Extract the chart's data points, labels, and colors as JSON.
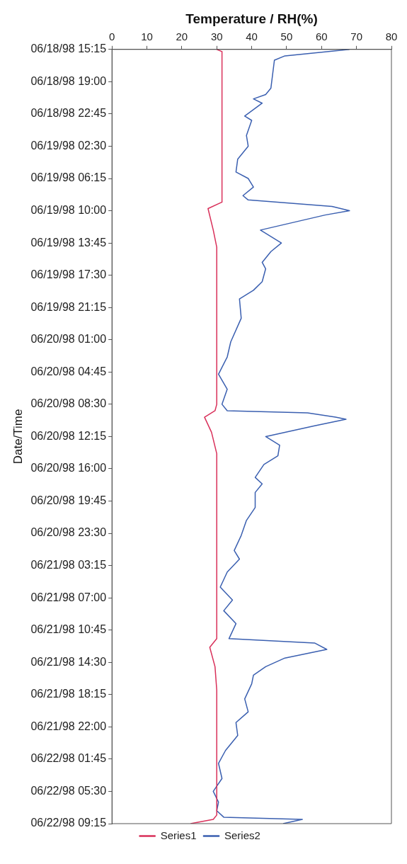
{
  "chart_data": {
    "type": "line",
    "orientation": "horizontal",
    "xlabel": "Temperature / RH(%)",
    "ylabel": "Date/Time",
    "xlim": [
      0,
      80
    ],
    "xticks": [
      0,
      10,
      20,
      30,
      40,
      50,
      60,
      70,
      80
    ],
    "ylim": [
      "1998-06-22T09:15",
      "1998-06-18T15:15"
    ],
    "yticks": [
      {
        "value": "1998-06-18T15:15",
        "label": "06/18/98 15:15"
      },
      {
        "value": "1998-06-18T19:00",
        "label": "06/18/98 19:00"
      },
      {
        "value": "1998-06-18T22:45",
        "label": "06/18/98 22:45"
      },
      {
        "value": "1998-06-19T02:30",
        "label": "06/19/98 02:30"
      },
      {
        "value": "1998-06-19T06:15",
        "label": "06/19/98 06:15"
      },
      {
        "value": "1998-06-19T10:00",
        "label": "06/19/98 10:00"
      },
      {
        "value": "1998-06-19T13:45",
        "label": "06/19/98 13:45"
      },
      {
        "value": "1998-06-19T17:30",
        "label": "06/19/98 17:30"
      },
      {
        "value": "1998-06-19T21:15",
        "label": "06/19/98 21:15"
      },
      {
        "value": "1998-06-20T01:00",
        "label": "06/20/98 01:00"
      },
      {
        "value": "1998-06-20T04:45",
        "label": "06/20/98 04:45"
      },
      {
        "value": "1998-06-20T08:30",
        "label": "06/20/98 08:30"
      },
      {
        "value": "1998-06-20T12:15",
        "label": "06/20/98 12:15"
      },
      {
        "value": "1998-06-20T16:00",
        "label": "06/20/98 16:00"
      },
      {
        "value": "1998-06-20T19:45",
        "label": "06/20/98 19:45"
      },
      {
        "value": "1998-06-20T23:30",
        "label": "06/20/98 23:30"
      },
      {
        "value": "1998-06-21T03:15",
        "label": "06/21/98 03:15"
      },
      {
        "value": "1998-06-21T07:00",
        "label": "06/21/98 07:00"
      },
      {
        "value": "1998-06-21T10:45",
        "label": "06/21/98 10:45"
      },
      {
        "value": "1998-06-21T14:30",
        "label": "06/21/98 14:30"
      },
      {
        "value": "1998-06-21T18:15",
        "label": "06/21/98 18:15"
      },
      {
        "value": "1998-06-21T22:00",
        "label": "06/21/98 22:00"
      },
      {
        "value": "1998-06-22T01:45",
        "label": "06/22/98 01:45"
      },
      {
        "value": "1998-06-22T05:30",
        "label": "06/22/98 05:30"
      },
      {
        "value": "1998-06-22T09:15",
        "label": "06/22/98 09:15"
      }
    ],
    "grid": false,
    "legend": "bottom",
    "marker": "none",
    "line_style": "solid",
    "series": [
      {
        "name": "Series1",
        "color": "#d9305a",
        "x": [
          "1998-06-18T15:15",
          "1998-06-18T15:30",
          "1998-06-19T09:00",
          "1998-06-19T09:45",
          "1998-06-19T12:15",
          "1998-06-19T14:15",
          "1998-06-20T08:30",
          "1998-06-20T09:15",
          "1998-06-20T10:00",
          "1998-06-20T11:45",
          "1998-06-20T14:15",
          "1998-06-21T11:45",
          "1998-06-21T12:45",
          "1998-06-21T15:00",
          "1998-06-21T17:45",
          "1998-06-22T08:15",
          "1998-06-22T08:45",
          "1998-06-22T09:15"
        ],
        "values": [
          30,
          31.5,
          31.5,
          27.5,
          29,
          30,
          30,
          29.5,
          26.5,
          28.5,
          30,
          30,
          28,
          29.5,
          30,
          30,
          29,
          22.5
        ]
      },
      {
        "name": "Series2",
        "color": "#3a5fb0",
        "x": [
          "1998-06-18T15:15",
          "1998-06-18T16:00",
          "1998-06-18T16:30",
          "1998-06-18T19:45",
          "1998-06-18T20:30",
          "1998-06-18T21:00",
          "1998-06-18T21:30",
          "1998-06-18T23:00",
          "1998-06-18T23:30",
          "1998-06-19T01:15",
          "1998-06-19T02:30",
          "1998-06-19T04:00",
          "1998-06-19T05:30",
          "1998-06-19T06:15",
          "1998-06-19T07:15",
          "1998-06-19T08:15",
          "1998-06-19T08:45",
          "1998-06-19T09:30",
          "1998-06-19T10:00",
          "1998-06-19T10:30",
          "1998-06-19T12:15",
          "1998-06-19T13:45",
          "1998-06-19T14:45",
          "1998-06-19T16:00",
          "1998-06-19T16:45",
          "1998-06-19T18:15",
          "1998-06-19T19:15",
          "1998-06-19T20:15",
          "1998-06-19T22:30",
          "1998-06-20T01:15",
          "1998-06-20T03:00",
          "1998-06-20T05:00",
          "1998-06-20T06:45",
          "1998-06-20T08:30",
          "1998-06-20T09:15",
          "1998-06-20T09:30",
          "1998-06-20T10:00",
          "1998-06-20T10:15",
          "1998-06-20T11:00",
          "1998-06-20T12:15",
          "1998-06-20T13:15",
          "1998-06-20T14:30",
          "1998-06-20T15:30",
          "1998-06-20T17:00",
          "1998-06-20T17:45",
          "1998-06-20T18:45",
          "1998-06-20T20:30",
          "1998-06-20T22:00",
          "1998-06-20T23:45",
          "1998-06-21T01:30",
          "1998-06-21T02:30",
          "1998-06-21T04:00",
          "1998-06-21T05:45",
          "1998-06-21T07:15",
          "1998-06-21T08:30",
          "1998-06-21T10:00",
          "1998-06-21T11:45",
          "1998-06-21T12:15",
          "1998-06-21T13:00",
          "1998-06-21T14:00",
          "1998-06-21T15:00",
          "1998-06-21T16:00",
          "1998-06-21T17:00",
          "1998-06-21T18:45",
          "1998-06-21T20:15",
          "1998-06-21T21:30",
          "1998-06-21T23:00",
          "1998-06-22T00:45",
          "1998-06-22T02:15",
          "1998-06-22T04:00",
          "1998-06-22T05:30",
          "1998-06-22T06:45",
          "1998-06-22T07:45",
          "1998-06-22T08:30",
          "1998-06-22T08:45",
          "1998-06-22T09:15"
        ],
        "values": [
          68,
          49.5,
          46.5,
          45.5,
          44,
          40.5,
          43,
          38,
          40,
          38.5,
          39,
          36,
          35.5,
          39,
          40.5,
          37.5,
          39,
          63,
          68,
          61,
          42.5,
          48.5,
          45.5,
          43,
          44,
          43,
          40.5,
          36.5,
          37,
          34,
          33,
          30.5,
          33,
          31.5,
          33,
          56,
          64,
          67,
          58,
          44,
          48,
          47.5,
          43.5,
          41,
          43,
          41,
          41,
          38.5,
          37,
          35,
          36.5,
          33,
          31,
          34.5,
          32,
          35.5,
          33.5,
          58,
          61.5,
          49.5,
          44,
          40.5,
          40,
          38,
          39,
          35.5,
          36,
          32.5,
          30.5,
          31.5,
          29,
          30.5,
          30,
          32,
          54.5,
          49
        ]
      }
    ]
  }
}
